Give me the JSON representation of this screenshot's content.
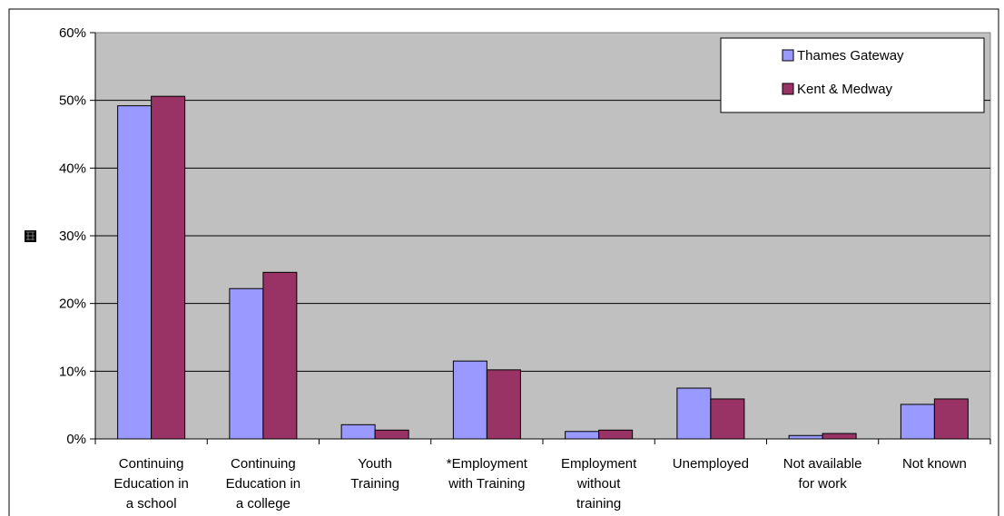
{
  "chart_data": {
    "type": "bar",
    "categories": [
      [
        "Continuing",
        "Education in",
        "a school"
      ],
      [
        "Continuing",
        "Education in",
        "a college"
      ],
      [
        "Youth",
        "Training"
      ],
      [
        "*Employment",
        "with Training"
      ],
      [
        "Employment",
        "without",
        "training"
      ],
      [
        "Unemployed"
      ],
      [
        "Not available",
        "for work"
      ],
      [
        "Not known"
      ]
    ],
    "series": [
      {
        "name": "Thames Gateway",
        "color": "#9999ff",
        "values": [
          49.2,
          22.2,
          2.1,
          11.5,
          1.1,
          7.5,
          0.5,
          5.1
        ]
      },
      {
        "name": "Kent & Medway",
        "color": "#993366",
        "values": [
          50.6,
          24.6,
          1.3,
          10.2,
          1.3,
          5.9,
          0.8,
          5.9
        ]
      }
    ],
    "y_ticks": [
      "0%",
      "10%",
      "20%",
      "30%",
      "40%",
      "50%",
      "60%"
    ],
    "ylim": [
      0,
      60
    ],
    "grid": true,
    "legend_position": "top-right",
    "plot_background": "#c0c0c0",
    "title": "",
    "xlabel": "",
    "ylabel": ""
  }
}
